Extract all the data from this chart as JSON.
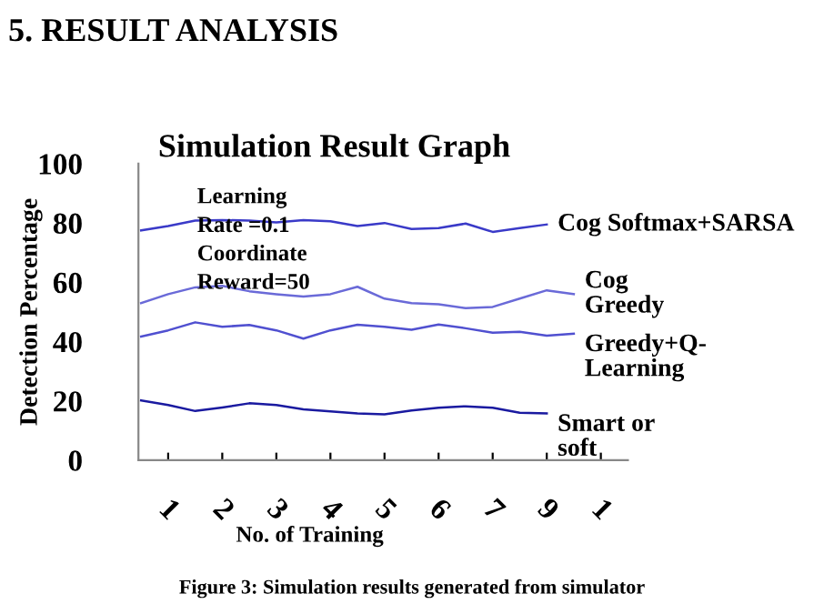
{
  "chart_data": {
    "type": "line",
    "title": "Simulation Result Graph",
    "xlabel": "No. of Training",
    "ylabel": "Detection Percentage",
    "annotations": [
      "5. RESULT ANALYSIS",
      "Learning\nRate =0.1\nCoordinate\nReward=50",
      "Figure 3: Simulation results generated from simulator"
    ],
    "categories": [
      null,
      "1",
      null,
      "2",
      null,
      "3",
      null,
      "4",
      null,
      "5",
      null,
      "6",
      null,
      "7",
      null,
      "9",
      null,
      "1",
      null
    ],
    "ylim": [
      0,
      100
    ],
    "yticks": [
      0,
      20,
      40,
      60,
      80,
      100
    ],
    "grid": false,
    "legend": false,
    "marker": "none",
    "line_style": "solid",
    "series": [
      {
        "name": "Cog Softmax+SARSA",
        "color": "#3a3ac8",
        "values": [
          77.5,
          79,
          80.8,
          81,
          80.8,
          80.2,
          81,
          80.6,
          79,
          80,
          78,
          78.3,
          79.8,
          77,
          78.3,
          79.5,
          null,
          null,
          null
        ]
      },
      {
        "name": "Cog\nGreedy",
        "color": "#6a6ad8",
        "values": [
          53,
          56,
          58.3,
          58.8,
          57,
          56,
          55.2,
          56,
          58.5,
          54.5,
          53,
          52.6,
          51.3,
          51.7,
          54.5,
          57.3,
          56,
          null,
          null
        ]
      },
      {
        "name": "Greedy+Q-\nLearning",
        "color": "#5050d0",
        "values": [
          41.7,
          43.8,
          46.5,
          45,
          45.6,
          43.8,
          41,
          43.8,
          45.7,
          45,
          44,
          45.8,
          44.5,
          43,
          43.3,
          42,
          42.7,
          null,
          null
        ]
      },
      {
        "name": "Smart or\nsoft",
        "color": "#1a1aa0",
        "values": [
          20.2,
          18.6,
          16.6,
          17.8,
          19.2,
          18.6,
          17.2,
          16.5,
          15.8,
          15.5,
          16.8,
          17.7,
          18.2,
          17.7,
          16,
          15.8,
          null,
          null,
          null
        ]
      }
    ]
  }
}
